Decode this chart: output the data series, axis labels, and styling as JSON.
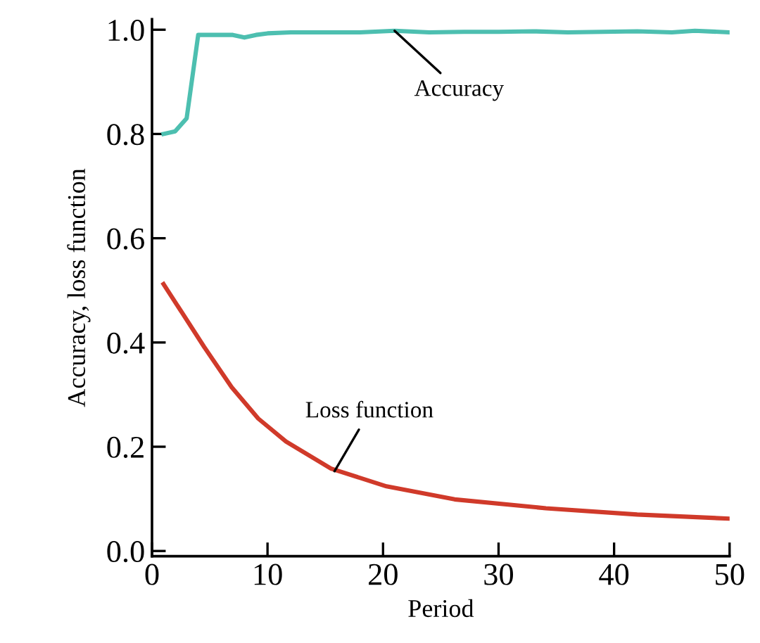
{
  "chart_data": {
    "type": "line",
    "xlabel": "Period",
    "ylabel": "Accuracy, loss function",
    "series": [
      {
        "color": "#4dbfb0",
        "x": [
          1,
          2,
          3,
          4,
          5,
          6,
          7,
          8,
          9,
          10,
          12,
          15,
          18,
          21,
          24,
          27,
          30,
          33,
          36,
          39,
          42,
          45,
          47,
          50
        ],
        "values": [
          0.8,
          0.805,
          0.83,
          0.99,
          0.99,
          0.99,
          0.99,
          0.985,
          0.99,
          0.993,
          0.995,
          0.995,
          0.995,
          0.998,
          0.995,
          0.996,
          0.996,
          0.997,
          0.995,
          0.996,
          0.997,
          0.995,
          0.998,
          0.995
        ]
      },
      {
        "color": "#d03a2a",
        "x": [
          1,
          4.5,
          6.9,
          9.2,
          11.6,
          15.5,
          20.3,
          26.2,
          34.1,
          42,
          50
        ],
        "values": [
          0.512,
          0.392,
          0.314,
          0.254,
          0.21,
          0.158,
          0.124,
          0.099,
          0.082,
          0.07,
          0.062
        ]
      }
    ],
    "annotations": [
      {
        "text": "Accuracy",
        "x": 21,
        "y": 0.998
      },
      {
        "text": "Loss function",
        "x": 15.8,
        "y": 0.153
      }
    ],
    "xlim": [
      0,
      50
    ],
    "xticks": [
      0,
      10,
      20,
      30,
      40,
      50
    ],
    "ylim": [
      -0.01,
      1.02
    ],
    "yticks": [
      {
        "value": 0,
        "label": "0.0"
      },
      {
        "value": 0.2,
        "label": "0.2"
      },
      {
        "value": 0.4,
        "label": "0.4"
      },
      {
        "value": 0.6,
        "label": "0.6"
      },
      {
        "value": 0.8,
        "label": "0.8"
      },
      {
        "value": 1.0,
        "label": "1.0"
      }
    ],
    "grid": false,
    "marker": "none",
    "line_style": "solid"
  }
}
